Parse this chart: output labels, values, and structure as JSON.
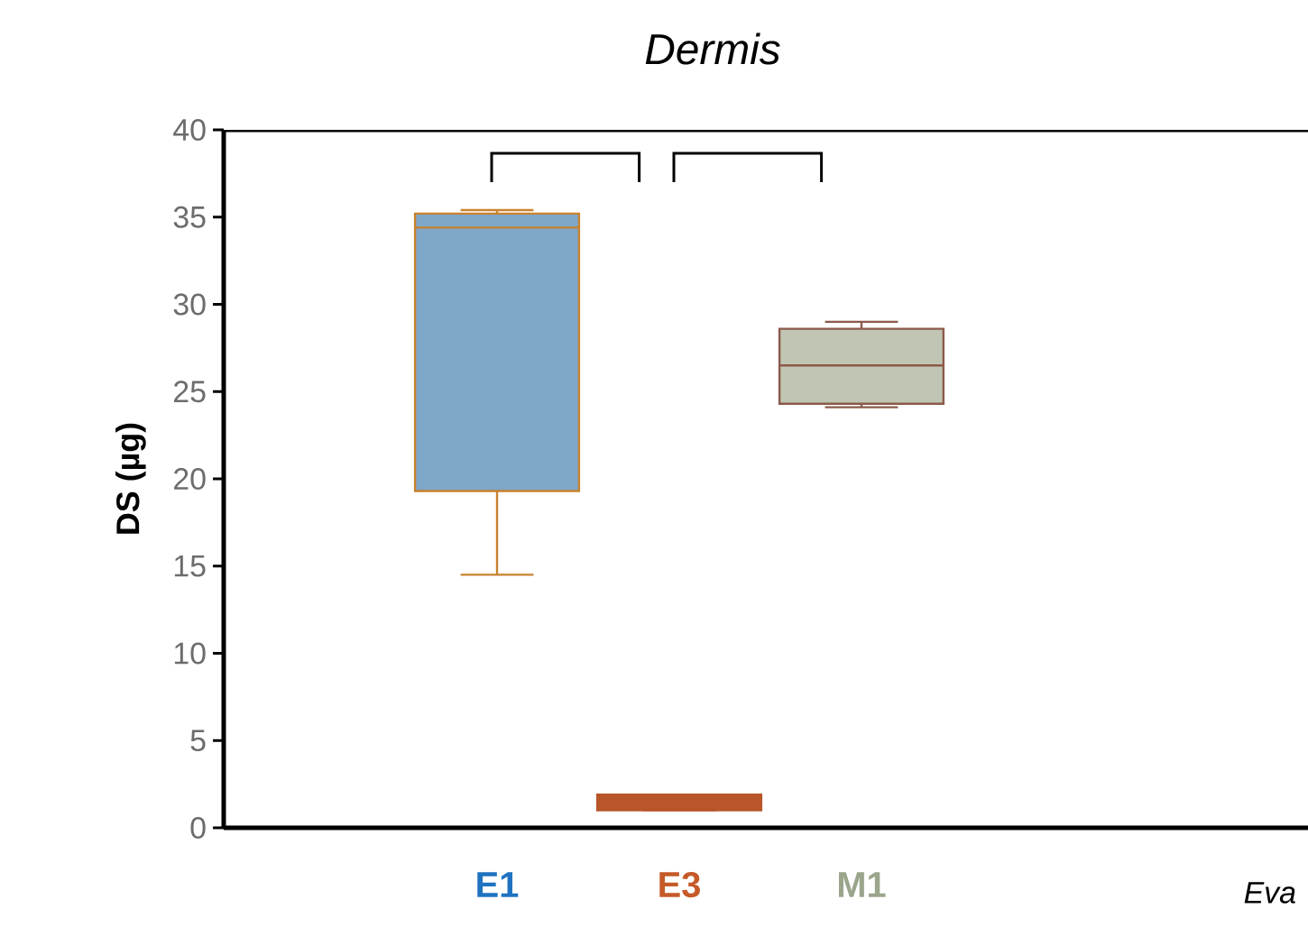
{
  "chart_data": {
    "type": "box",
    "title": "*Dermis*",
    "ylabel": "DS (µg)",
    "categories": [
      null,
      "E1",
      "E3",
      "M1",
      null,
      null
    ],
    "boxes": [
      null,
      {
        "low": 14.5,
        "q1": 19.3,
        "median": 34.4,
        "q3": 35.2,
        "high": 35.4
      },
      {
        "low": 1.0,
        "q1": 1.0,
        "median": 1.4,
        "q3": 1.9,
        "high": 1.9
      },
      {
        "low": 24.1,
        "q1": 24.3,
        "median": 26.5,
        "q3": 28.6,
        "high": 29.0
      },
      null,
      null
    ],
    "colors": [
      null,
      "#7ea7c9",
      "#b8562a",
      "#c1c6b4",
      null,
      null
    ],
    "ylim": [
      0,
      40
    ],
    "yticks": [
      0,
      5,
      10,
      15,
      20,
      25,
      30,
      35,
      40
    ],
    "annotations": [
      "*Eva*"
    ],
    "grid": false
  }
}
